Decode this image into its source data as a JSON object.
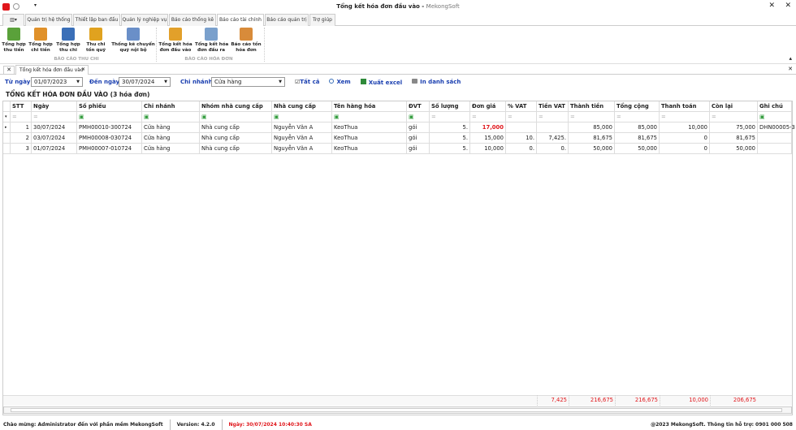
{
  "window": {
    "title": "Tổng kết hóa đơn đầu vào",
    "app": "MekongSoft"
  },
  "menu_tabs": [
    "Quản trị hệ thống",
    "Thiết lập ban đầu",
    "Quản lý nghiệp vụ",
    "Báo cáo thống kê",
    "Báo cáo tài chính",
    "Báo cáo quản trị",
    "Trợ giúp"
  ],
  "active_tab": 4,
  "ribbon": {
    "buttons": [
      {
        "label1": "Tổng hợp",
        "label2": "thu tiền",
        "color": "#5aa13a"
      },
      {
        "label1": "Tổng hợp",
        "label2": "chi tiền",
        "color": "#e0912a"
      },
      {
        "label1": "Tổng hợp",
        "label2": "thu chi",
        "color": "#3a6fb8"
      },
      {
        "label1": "Thu chi",
        "label2": "tồn quỹ",
        "color": "#e0a21f"
      },
      {
        "label1": "Thống kê chuyển",
        "label2": "quỹ nội bộ",
        "color": "#6a8fc8"
      },
      {
        "label1": "Tổng kết hóa",
        "label2": "đơn đầu vào",
        "color": "#e2a02a"
      },
      {
        "label1": "Tổng kết hóa",
        "label2": "đơn đầu ra",
        "color": "#7aa0cc"
      },
      {
        "label1": "Báo cáo tồn",
        "label2": "hóa đơn",
        "color": "#d88b3a"
      }
    ],
    "groups": [
      "BÁO CÁO THU CHI",
      "BÁO CÁO HÓA ĐƠN"
    ]
  },
  "doc_tab": "Tổng kết hóa đơn đầu vào",
  "filter": {
    "from_label": "Từ ngày",
    "from": "01/07/2023",
    "to_label": "Đến ngày",
    "to": "30/07/2024",
    "branch_label": "Chi nhánh",
    "branch": "Cửa hàng",
    "all": "Tất cả",
    "view": "Xem",
    "excel": "Xuất excel",
    "print": "In danh sách"
  },
  "section_title": "TỔNG KẾT HÓA ĐƠN ĐẦU VÀO (3 hóa đơn)",
  "columns": [
    "STT",
    "Ngày",
    "Số phiếu",
    "Chi nhánh",
    "Nhóm nhà cung cấp",
    "Nhà cung cấp",
    "Tên hàng hóa",
    "ĐVT",
    "Số lượng",
    "Đơn giá",
    "% VAT",
    "Tiền VAT",
    "Thành tiền",
    "Tổng cộng",
    "Thanh toán",
    "Còn lại",
    "Ghi chú"
  ],
  "rows": [
    [
      "1",
      "30/07/2024",
      "PMH00010-300724",
      "Cửa hàng",
      "Nhà cung cấp",
      "Nguyễn Văn A",
      "KeoThua",
      "gói",
      "5.",
      "17,000",
      "",
      "",
      "85,000",
      "85,000",
      "10,000",
      "75,000",
      "DHN00005-3"
    ],
    [
      "2",
      "03/07/2024",
      "PMH00008-030724",
      "Cửa hàng",
      "Nhà cung cấp",
      "Nguyễn Văn A",
      "KeoThua",
      "gói",
      "5.",
      "15,000",
      "10.",
      "7,425.",
      "81,675",
      "81,675",
      "0",
      "81,675",
      ""
    ],
    [
      "3",
      "01/07/2024",
      "PMH00007-010724",
      "Cửa hàng",
      "Nhà cung cấp",
      "Nguyễn Văn A",
      "KeoThua",
      "gói",
      "5.",
      "10,000",
      "0.",
      "0.",
      "50,000",
      "50,000",
      "0",
      "50,000",
      ""
    ]
  ],
  "totals": {
    "tien_vat": "7,425",
    "thanh_tien": "216,675",
    "tong_cong": "216,675",
    "thanh_toan": "10,000",
    "con_lai": "206,675"
  },
  "status": {
    "welcome": "Chào mừng: Administrator đến với phần mềm MekongSoft",
    "version": "Version: 4.2.0",
    "date": "Ngày: 30/07/2024 10:40:30 SA",
    "copyright": "@2023 MekongSoft. Thông tin hỗ trợ: 0901 000 508"
  }
}
